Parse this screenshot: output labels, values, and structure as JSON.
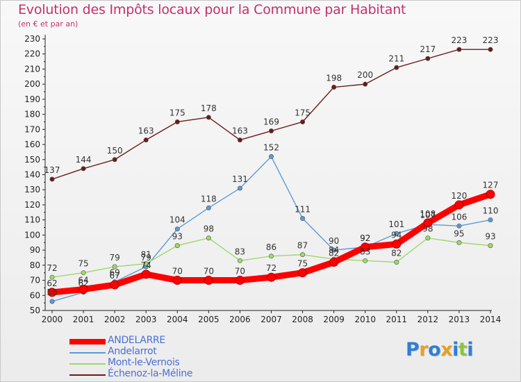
{
  "title": "Evolution des Impôts locaux pour la Commune par Habitant",
  "subtitle": "(en € et par an)",
  "logo": {
    "text": "Proxiti",
    "letters": [
      {
        "ch": "P",
        "color": "#2f7ed8"
      },
      {
        "ch": "r",
        "color": "#e8a020"
      },
      {
        "ch": "o",
        "color": "#2f7ed8"
      },
      {
        "ch": "x",
        "color": "#e8a020"
      },
      {
        "ch": "i",
        "color": "#2f7ed8"
      },
      {
        "ch": "t",
        "color": "#8cc63f"
      },
      {
        "ch": "i",
        "color": "#2f7ed8"
      }
    ]
  },
  "chart_data": {
    "type": "line",
    "title": "Evolution des Impôts locaux pour la Commune par Habitant",
    "subtitle": "(en € et par an)",
    "x": [
      "2000",
      "2001",
      "2002",
      "2003",
      "2004",
      "2005",
      "2006",
      "2007",
      "2008",
      "2009",
      "2010",
      "2011",
      "2012",
      "2013",
      "2014"
    ],
    "ylim": [
      50,
      230
    ],
    "ytick_step": 10,
    "grid": false,
    "legend_position": "bottom-left",
    "series": [
      {
        "name": "ANDELARRE",
        "color": "#ff0000",
        "style": "thick",
        "values": [
          62,
          64,
          67,
          74,
          70,
          70,
          70,
          72,
          75,
          82,
          92,
          94,
          108,
          120,
          127
        ],
        "labels": [
          "62",
          "64",
          "67",
          "74",
          "70",
          "70",
          "70",
          "72",
          "75",
          "82",
          "92",
          "94",
          "108",
          "120",
          "127"
        ]
      },
      {
        "name": "Andelarrot",
        "color": "#5a9bd4",
        "style": "thin",
        "values": [
          56,
          62,
          69,
          79,
          104,
          118,
          131,
          152,
          111,
          90,
          92,
          101,
          107,
          106,
          110
        ],
        "labels": [
          "56",
          "62",
          "69",
          "79",
          "104",
          "118",
          "131",
          "152",
          "111",
          "90",
          "92",
          "101",
          "107",
          "106",
          "110"
        ]
      },
      {
        "name": "Mont-le-Vernois",
        "color": "#9ed86a",
        "style": "thin",
        "values": [
          72,
          75,
          79,
          81,
          93,
          98,
          83,
          86,
          87,
          84,
          83,
          82,
          98,
          95,
          93
        ],
        "labels": [
          "72",
          "75",
          "79",
          "81",
          "93",
          "98",
          "83",
          "86",
          "87",
          "84",
          "83",
          "82",
          "98",
          "95",
          "93"
        ]
      },
      {
        "name": "Échenoz-la-Méline",
        "color": "#6b1a1a",
        "style": "thin",
        "values": [
          137,
          144,
          150,
          163,
          175,
          178,
          163,
          169,
          175,
          198,
          200,
          211,
          217,
          223,
          223
        ],
        "labels": [
          "137",
          "144",
          "150",
          "163",
          "175",
          "178",
          "163",
          "169",
          "175",
          "198",
          "200",
          "211",
          "217",
          "223",
          "223"
        ]
      }
    ]
  }
}
